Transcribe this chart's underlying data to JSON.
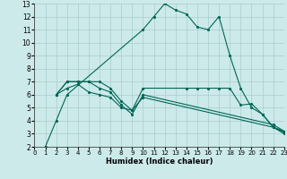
{
  "xlabel": "Humidex (Indice chaleur)",
  "bg_color": "#cceaea",
  "grid_color": "#aacccc",
  "line_color": "#006655",
  "xlim": [
    0,
    23
  ],
  "ylim": [
    2,
    13
  ],
  "xticks": [
    0,
    1,
    2,
    3,
    4,
    5,
    6,
    7,
    8,
    9,
    10,
    11,
    12,
    13,
    14,
    15,
    16,
    17,
    18,
    19,
    20,
    21,
    22,
    23
  ],
  "yticks": [
    2,
    3,
    4,
    5,
    6,
    7,
    8,
    9,
    10,
    11,
    12,
    13
  ],
  "lines": [
    {
      "x": [
        1,
        2,
        3,
        10,
        11,
        12,
        13,
        14,
        15,
        16,
        17,
        18,
        19,
        20,
        21,
        22,
        23
      ],
      "y": [
        2,
        4,
        6,
        11,
        12,
        13,
        12.5,
        12.2,
        11.2,
        11.0,
        12.0,
        9.0,
        6.5,
        5.0,
        4.5,
        3.5,
        3.0
      ]
    },
    {
      "x": [
        2,
        3,
        4,
        5,
        6,
        7,
        8,
        9,
        10,
        14,
        15,
        16,
        17,
        18,
        19,
        20,
        21,
        22,
        23
      ],
      "y": [
        6,
        7,
        7,
        7,
        7,
        6.5,
        5.5,
        4.8,
        6.5,
        6.5,
        6.5,
        6.5,
        6.5,
        6.5,
        5.2,
        5.3,
        4.5,
        3.5,
        3.2
      ]
    },
    {
      "x": [
        2,
        3,
        4,
        5,
        6,
        7,
        8,
        9,
        10,
        22,
        23
      ],
      "y": [
        6,
        7,
        7,
        7,
        6.5,
        6.2,
        5.2,
        4.5,
        6.0,
        3.7,
        3.2
      ]
    },
    {
      "x": [
        2,
        3,
        4,
        5,
        6,
        7,
        8,
        9,
        10,
        22,
        23
      ],
      "y": [
        6.0,
        6.5,
        6.8,
        6.2,
        6.0,
        5.8,
        5.0,
        4.8,
        5.8,
        3.5,
        3.1
      ]
    }
  ]
}
